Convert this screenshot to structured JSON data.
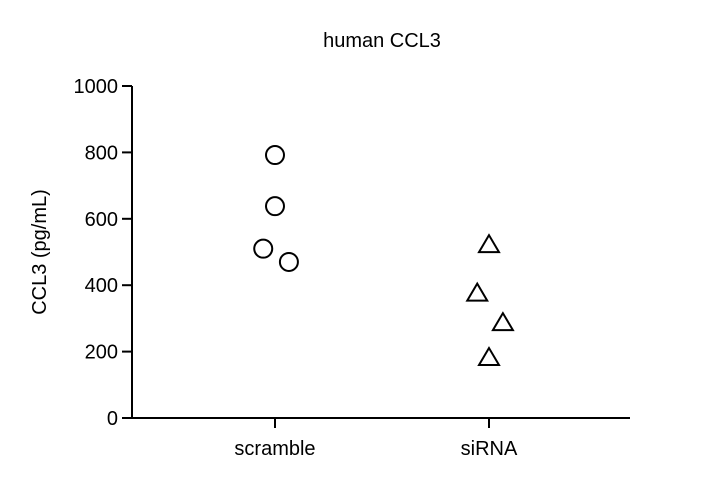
{
  "chart_data": {
    "type": "scatter",
    "title": "human CCL3",
    "xlabel": "",
    "ylabel": "CCL3 (pg/mL)",
    "categories": [
      "scramble",
      "siRNA"
    ],
    "ylim": [
      0,
      1000
    ],
    "yticks": [
      0,
      200,
      400,
      600,
      800,
      1000
    ],
    "grid": false,
    "series": [
      {
        "category": "scramble",
        "marker": "circle",
        "points": [
          {
            "jitter": 0.0,
            "value": 792
          },
          {
            "jitter": 0.0,
            "value": 638
          },
          {
            "jitter": -0.055,
            "value": 510
          },
          {
            "jitter": 0.065,
            "value": 470
          }
        ]
      },
      {
        "category": "siRNA",
        "marker": "triangle",
        "points": [
          {
            "jitter": 0.0,
            "value": 520
          },
          {
            "jitter": -0.055,
            "value": 374
          },
          {
            "jitter": 0.065,
            "value": 285
          },
          {
            "jitter": 0.0,
            "value": 180
          }
        ]
      }
    ]
  }
}
